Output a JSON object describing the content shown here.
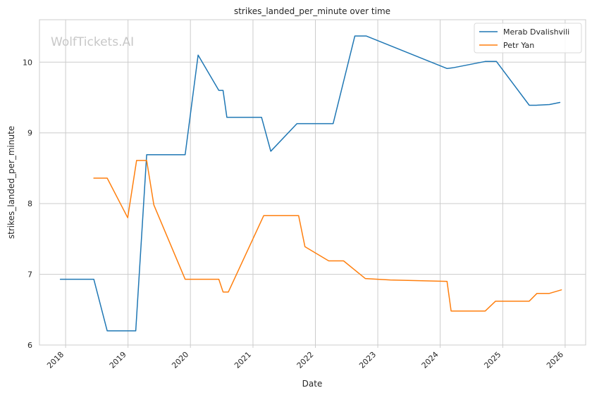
{
  "watermark": "WolfTickets.AI",
  "chart_data": {
    "type": "line",
    "title": "strikes_landed_per_minute over time",
    "xlabel": "Date",
    "ylabel": "strikes_landed_per_minute",
    "xlim": [
      "2017-08-01",
      "2026-05-01"
    ],
    "ylim": [
      6,
      10.6
    ],
    "x_ticks": [
      "2018",
      "2019",
      "2020",
      "2021",
      "2022",
      "2023",
      "2024",
      "2025",
      "2026"
    ],
    "y_ticks": [
      6,
      7,
      8,
      9,
      10
    ],
    "grid": true,
    "legend_position": "top-right",
    "series": [
      {
        "name": "Merab Dvalishvili",
        "color": "#1f77b4",
        "points": [
          [
            "2017-12-01",
            6.93
          ],
          [
            "2018-06-15",
            6.93
          ],
          [
            "2018-09-01",
            6.2
          ],
          [
            "2019-02-15",
            6.2
          ],
          [
            "2019-04-20",
            8.69
          ],
          [
            "2019-12-01",
            8.69
          ],
          [
            "2020-02-15",
            10.1
          ],
          [
            "2020-06-15",
            9.6
          ],
          [
            "2020-07-10",
            9.6
          ],
          [
            "2020-08-01",
            9.22
          ],
          [
            "2021-02-20",
            9.22
          ],
          [
            "2021-04-15",
            8.74
          ],
          [
            "2021-09-15",
            9.13
          ],
          [
            "2022-04-15",
            9.13
          ],
          [
            "2022-08-20",
            10.37
          ],
          [
            "2022-10-25",
            10.37
          ],
          [
            "2024-02-10",
            9.91
          ],
          [
            "2024-03-15",
            9.92
          ],
          [
            "2024-09-20",
            10.01
          ],
          [
            "2024-11-25",
            10.01
          ],
          [
            "2025-06-05",
            9.39
          ],
          [
            "2025-07-15",
            9.39
          ],
          [
            "2025-10-01",
            9.4
          ],
          [
            "2025-12-01",
            9.43
          ]
        ]
      },
      {
        "name": "Petr Yan",
        "color": "#ff7f0e",
        "points": [
          [
            "2018-06-15",
            8.36
          ],
          [
            "2018-09-01",
            8.36
          ],
          [
            "2018-12-30",
            7.8
          ],
          [
            "2019-02-20",
            8.61
          ],
          [
            "2019-04-20",
            8.61
          ],
          [
            "2019-06-01",
            7.98
          ],
          [
            "2019-12-01",
            6.93
          ],
          [
            "2020-06-15",
            6.93
          ],
          [
            "2020-07-10",
            6.75
          ],
          [
            "2020-08-10",
            6.75
          ],
          [
            "2021-03-05",
            7.83
          ],
          [
            "2021-09-25",
            7.83
          ],
          [
            "2021-11-01",
            7.39
          ],
          [
            "2022-03-20",
            7.19
          ],
          [
            "2022-06-15",
            7.19
          ],
          [
            "2022-10-20",
            6.94
          ],
          [
            "2023-03-15",
            6.92
          ],
          [
            "2024-02-10",
            6.9
          ],
          [
            "2024-03-05",
            6.48
          ],
          [
            "2024-09-20",
            6.48
          ],
          [
            "2024-11-20",
            6.62
          ],
          [
            "2025-06-05",
            6.62
          ],
          [
            "2025-07-20",
            6.73
          ],
          [
            "2025-10-01",
            6.73
          ],
          [
            "2025-12-10",
            6.78
          ]
        ]
      }
    ]
  }
}
